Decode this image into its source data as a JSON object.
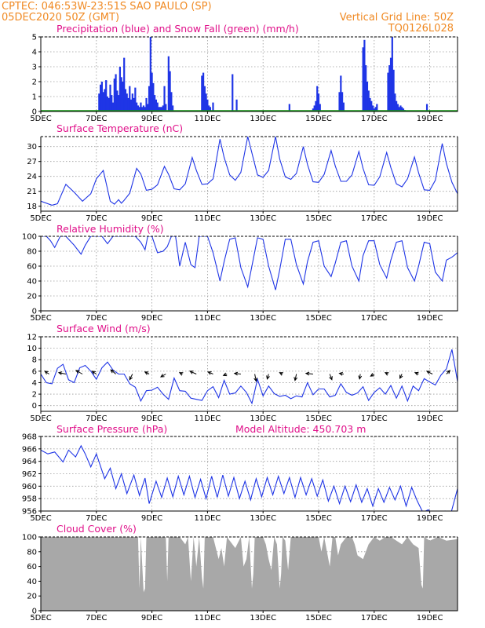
{
  "header": {
    "line1_left": "CPTEC:  046:53W-23:51S  SAO PAULO (SP)",
    "line2_left": "05DEC2020 50Z (GMT)",
    "line1_right": "Vertical Grid Line: 50Z",
    "line2_right": "TQ0126L028"
  },
  "colors": {
    "header": "#f08a24",
    "panel_title": "#e0118a",
    "series_blue": "#1f35e6",
    "snow_green": "#18a018",
    "cloud_gray": "#a8a8a8",
    "grid": "#9a9a9a"
  },
  "x_axis": {
    "start_day": 5,
    "end_day": 20,
    "tick_days": [
      5,
      7,
      9,
      11,
      13,
      15,
      17,
      19
    ],
    "tick_labels": [
      "5DEC",
      "7DEC",
      "9DEC",
      "11DEC",
      "13DEC",
      "15DEC",
      "17DEC",
      "19DEC"
    ]
  },
  "chart_data": [
    {
      "id": "precip",
      "type": "bar",
      "title": "Precipitation (blue) and Snow Fall (green) (mm/h)",
      "ylim": [
        0,
        5
      ],
      "yticks": [
        0,
        1,
        2,
        3,
        4,
        5
      ],
      "grid": true,
      "series": [
        {
          "name": "Precipitation",
          "color": "blue",
          "x": [
            7.1,
            7.15,
            7.2,
            7.25,
            7.3,
            7.35,
            7.4,
            7.45,
            7.5,
            7.55,
            7.6,
            7.65,
            7.7,
            7.75,
            7.8,
            7.85,
            7.9,
            7.95,
            8.0,
            8.05,
            8.1,
            8.15,
            8.2,
            8.25,
            8.3,
            8.35,
            8.4,
            8.45,
            8.5,
            8.55,
            8.6,
            8.65,
            8.7,
            8.75,
            8.8,
            8.85,
            8.9,
            8.95,
            9.0,
            9.05,
            9.1,
            9.15,
            9.2,
            9.25,
            9.3,
            9.35,
            9.4,
            9.45,
            9.5,
            9.6,
            9.65,
            9.7,
            9.75,
            10.8,
            10.85,
            10.9,
            10.95,
            11.0,
            11.05,
            11.1,
            11.2,
            11.9,
            12.05,
            13.95,
            14.8,
            14.85,
            14.9,
            14.95,
            15.0,
            15.05,
            15.75,
            15.8,
            15.85,
            15.9,
            16.6,
            16.65,
            16.7,
            16.75,
            16.8,
            16.85,
            16.9,
            16.95,
            17.0,
            17.05,
            17.1,
            17.5,
            17.55,
            17.6,
            17.65,
            17.7,
            17.75,
            17.8,
            17.85,
            17.9,
            17.95,
            18.0,
            18.05,
            18.1,
            18.9
          ],
          "values": [
            1.2,
            1.8,
            2.0,
            1.3,
            1.5,
            2.1,
            1.0,
            0.9,
            1.8,
            1.1,
            0.6,
            2.2,
            2.5,
            1.4,
            1.1,
            3.0,
            2.3,
            2.0,
            3.6,
            1.5,
            1.2,
            0.9,
            1.7,
            0.8,
            1.2,
            0.9,
            1.6,
            0.6,
            0.4,
            0.3,
            0.6,
            0.3,
            0.4,
            0.3,
            0.9,
            0.5,
            1.7,
            5.0,
            2.6,
            1.9,
            1.1,
            0.8,
            0.6,
            0.3,
            0.3,
            0.3,
            0.4,
            1.7,
            0.5,
            3.7,
            2.7,
            1.3,
            0.4,
            2.4,
            2.6,
            1.7,
            1.2,
            0.8,
            0.4,
            0.3,
            0.6,
            2.5,
            0.8,
            0.5,
            0.2,
            0.4,
            0.7,
            1.7,
            1.2,
            0.5,
            1.3,
            2.4,
            1.3,
            0.6,
            4.3,
            4.8,
            3.1,
            2.0,
            1.4,
            0.9,
            0.7,
            0.4,
            0.2,
            0.3,
            0.5,
            2.6,
            3.1,
            3.6,
            5.0,
            2.8,
            1.2,
            0.7,
            0.5,
            0.3,
            0.4,
            0.3,
            0.2,
            0.1,
            0.5
          ]
        },
        {
          "name": "Snow Fall",
          "color": "green",
          "values_all": 0
        }
      ]
    },
    {
      "id": "temperature",
      "type": "line",
      "title": "Surface Temperature (nC)",
      "ylim": [
        17,
        32
      ],
      "yticks": [
        18,
        21,
        24,
        27,
        30
      ],
      "grid": true,
      "x": [
        5.0,
        5.4,
        5.6,
        5.9,
        6.2,
        6.5,
        6.8,
        7.0,
        7.25,
        7.5,
        7.65,
        7.8,
        7.9,
        8.0,
        8.2,
        8.45,
        8.6,
        8.8,
        9.0,
        9.2,
        9.45,
        9.6,
        9.8,
        10.0,
        10.2,
        10.45,
        10.6,
        10.8,
        11.0,
        11.2,
        11.45,
        11.6,
        11.8,
        12.0,
        12.2,
        12.45,
        12.6,
        12.8,
        13.0,
        13.2,
        13.45,
        13.6,
        13.8,
        14.0,
        14.2,
        14.45,
        14.6,
        14.8,
        15.0,
        15.2,
        15.45,
        15.6,
        15.8,
        16.0,
        16.2,
        16.45,
        16.6,
        16.8,
        17.0,
        17.2,
        17.45,
        17.6,
        17.8,
        18.0,
        18.2,
        18.45,
        18.6,
        18.8,
        19.0,
        19.2,
        19.45,
        19.6,
        19.8,
        20.0
      ],
      "values": [
        19,
        18.2,
        18.5,
        22.4,
        20.8,
        19,
        20.5,
        23.5,
        25.2,
        19,
        18.4,
        19.3,
        18.6,
        19.2,
        20.6,
        25.6,
        24.5,
        21.2,
        21.4,
        22.3,
        26,
        24.4,
        21.5,
        21.3,
        22.5,
        27.8,
        25.2,
        22.4,
        22.5,
        23.5,
        31.5,
        27.8,
        24.3,
        23.2,
        24.8,
        32,
        28.7,
        24.3,
        23.8,
        25.2,
        32,
        27.5,
        23.9,
        23.4,
        24.6,
        30,
        26.4,
        22.9,
        22.8,
        24.4,
        29.2,
        26.1,
        23,
        23,
        24.3,
        29,
        25.6,
        22.3,
        22.2,
        23.9,
        28.8,
        25.8,
        22.5,
        21.9,
        23.5,
        27.9,
        24.7,
        21.3,
        21.2,
        23.2,
        30.6,
        26.6,
        22.8,
        20.5
      ]
    },
    {
      "id": "humidity",
      "type": "line",
      "title": "Relative Humidity (%)",
      "ylim": [
        0,
        100
      ],
      "yticks": [
        0,
        20,
        40,
        60,
        80,
        100
      ],
      "grid": true,
      "x": [
        5.0,
        5.2,
        5.35,
        5.5,
        5.7,
        5.9,
        6.2,
        6.45,
        6.6,
        6.8,
        7.0,
        7.2,
        7.4,
        7.6,
        7.8,
        8.0,
        8.2,
        8.4,
        8.6,
        8.75,
        8.85,
        9.0,
        9.2,
        9.4,
        9.55,
        9.7,
        9.85,
        10.0,
        10.2,
        10.4,
        10.55,
        10.7,
        10.85,
        11.0,
        11.2,
        11.45,
        11.6,
        11.8,
        12.0,
        12.2,
        12.45,
        12.6,
        12.8,
        13.0,
        13.2,
        13.45,
        13.6,
        13.8,
        14.0,
        14.2,
        14.45,
        14.6,
        14.8,
        15.0,
        15.2,
        15.45,
        15.6,
        15.8,
        16.0,
        16.2,
        16.45,
        16.6,
        16.8,
        17.0,
        17.2,
        17.45,
        17.6,
        17.8,
        18.0,
        18.2,
        18.45,
        18.6,
        18.8,
        19.0,
        19.2,
        19.45,
        19.6,
        19.8,
        20.0
      ],
      "values": [
        100,
        100,
        94,
        85,
        100,
        100,
        88,
        76,
        88,
        100,
        100,
        100,
        90,
        100,
        100,
        100,
        100,
        100,
        92,
        82,
        100,
        100,
        78,
        80,
        86,
        100,
        100,
        60,
        92,
        62,
        58,
        100,
        100,
        100,
        78,
        40,
        66,
        96,
        98,
        58,
        32,
        60,
        98,
        96,
        60,
        28,
        55,
        96,
        96,
        62,
        36,
        66,
        92,
        94,
        60,
        46,
        64,
        92,
        94,
        60,
        40,
        74,
        94,
        94,
        62,
        44,
        68,
        92,
        94,
        58,
        40,
        60,
        92,
        90,
        52,
        40,
        68,
        72,
        78
      ]
    },
    {
      "id": "wind",
      "type": "line",
      "title": "Surface Wind (m/s)",
      "ylim": [
        -1,
        12
      ],
      "yticks": [
        0,
        2,
        4,
        6,
        8,
        10,
        12
      ],
      "grid": true,
      "x": [
        5.0,
        5.2,
        5.4,
        5.6,
        5.8,
        6.0,
        6.2,
        6.4,
        6.6,
        6.8,
        7.0,
        7.2,
        7.4,
        7.6,
        7.8,
        8.0,
        8.2,
        8.4,
        8.6,
        8.8,
        9.0,
        9.2,
        9.4,
        9.6,
        9.8,
        10.0,
        10.2,
        10.4,
        10.6,
        10.8,
        11.0,
        11.2,
        11.4,
        11.6,
        11.8,
        12.0,
        12.2,
        12.4,
        12.6,
        12.8,
        13.0,
        13.2,
        13.4,
        13.6,
        13.8,
        14.0,
        14.2,
        14.4,
        14.6,
        14.8,
        15.0,
        15.2,
        15.4,
        15.6,
        15.8,
        16.0,
        16.2,
        16.4,
        16.6,
        16.8,
        17.0,
        17.2,
        17.4,
        17.6,
        17.8,
        18.0,
        18.2,
        18.4,
        18.6,
        18.8,
        19.0,
        19.2,
        19.4,
        19.6,
        19.8,
        20.0
      ],
      "values": [
        5.5,
        4,
        3.8,
        6.5,
        7.2,
        4.5,
        4,
        6.6,
        7,
        6,
        4.6,
        6.6,
        7.6,
        6.2,
        5.5,
        5.5,
        3.8,
        3.2,
        0.8,
        2.6,
        2.7,
        3.2,
        2,
        1.1,
        4.8,
        2.6,
        2.5,
        1.3,
        1.1,
        0.9,
        2.6,
        3.3,
        1.4,
        4.4,
        2,
        2.2,
        3.4,
        2.3,
        0.4,
        4.6,
        1.7,
        3.4,
        2.1,
        1.6,
        1.8,
        1.2,
        1.7,
        1.5,
        4,
        1.9,
        2.9,
        2.9,
        1.5,
        1.8,
        3.8,
        2.3,
        1.8,
        2.2,
        3.3,
        0.9,
        2.3,
        3.1,
        2,
        3.5,
        1.3,
        3.4,
        0.8,
        3.4,
        2.6,
        4.7,
        4.1,
        3.6,
        5.3,
        6.4,
        9.8,
        4.2
      ],
      "vectors": [
        {
          "day": 5.3,
          "u": -0.6,
          "v": 0.4
        },
        {
          "day": 5.9,
          "u": -1,
          "v": 0.2
        },
        {
          "day": 6.5,
          "u": -0.9,
          "v": 0.5
        },
        {
          "day": 7.0,
          "u": -0.6,
          "v": 0.4
        },
        {
          "day": 7.7,
          "u": -0.7,
          "v": 0.6
        },
        {
          "day": 8.3,
          "u": -0.4,
          "v": -0.8
        },
        {
          "day": 8.9,
          "u": -0.6,
          "v": 0.3
        },
        {
          "day": 9.5,
          "u": -0.7,
          "v": -0.4
        },
        {
          "day": 10.1,
          "u": -0.4,
          "v": 0.2
        },
        {
          "day": 10.6,
          "u": -0.9,
          "v": 0.4
        },
        {
          "day": 11.2,
          "u": -0.7,
          "v": 0.3
        },
        {
          "day": 11.7,
          "u": -0.5,
          "v": -0.2
        },
        {
          "day": 12.2,
          "u": -0.9,
          "v": 0.1
        },
        {
          "day": 12.7,
          "u": 0.2,
          "v": -1.0
        },
        {
          "day": 13.2,
          "u": -0.2,
          "v": -0.7
        },
        {
          "day": 13.7,
          "u": -0.4,
          "v": 0.2
        },
        {
          "day": 14.2,
          "u": -0.2,
          "v": -0.9
        },
        {
          "day": 14.8,
          "u": -1.0,
          "v": 0.1
        },
        {
          "day": 15.4,
          "u": 0.3,
          "v": -0.8
        },
        {
          "day": 15.9,
          "u": -0.6,
          "v": 0.1
        },
        {
          "day": 16.5,
          "u": -0.1,
          "v": -0.7
        },
        {
          "day": 17.0,
          "u": -0.5,
          "v": -0.3
        },
        {
          "day": 17.5,
          "u": -0.4,
          "v": 0.2
        },
        {
          "day": 18.0,
          "u": -0.3,
          "v": -0.6
        },
        {
          "day": 18.6,
          "u": -0.5,
          "v": 0.2
        },
        {
          "day": 19.1,
          "u": -0.8,
          "v": 0.4
        },
        {
          "day": 19.6,
          "u": 0.5,
          "v": 0.5
        }
      ]
    },
    {
      "id": "pressure",
      "type": "line",
      "title": "Surface Pressure (hPa)",
      "annotation": "Model Altitude: 450.703 m",
      "ylim": [
        956,
        968
      ],
      "yticks": [
        956,
        958,
        960,
        962,
        964,
        966,
        968
      ],
      "grid": true,
      "x": [
        5.0,
        5.25,
        5.5,
        5.8,
        6.0,
        6.25,
        6.45,
        6.6,
        6.8,
        7.0,
        7.3,
        7.5,
        7.7,
        7.9,
        8.1,
        8.35,
        8.55,
        8.75,
        8.9,
        9.15,
        9.35,
        9.55,
        9.75,
        9.95,
        10.15,
        10.35,
        10.55,
        10.75,
        10.95,
        11.15,
        11.35,
        11.55,
        11.75,
        11.95,
        12.15,
        12.35,
        12.55,
        12.75,
        12.95,
        13.15,
        13.35,
        13.55,
        13.75,
        13.95,
        14.15,
        14.35,
        14.55,
        14.75,
        14.95,
        15.15,
        15.35,
        15.55,
        15.75,
        15.95,
        16.15,
        16.35,
        16.55,
        16.75,
        16.95,
        17.15,
        17.35,
        17.55,
        17.75,
        17.95,
        18.15,
        18.35,
        18.55,
        18.75,
        18.95,
        19.15,
        19.35,
        19.55,
        19.75,
        20.0
      ],
      "values": [
        965.8,
        965.2,
        965.5,
        963.9,
        965.8,
        964.7,
        966.5,
        965.2,
        963.1,
        965.2,
        961.2,
        962.9,
        959.6,
        962,
        958.8,
        961.8,
        958.5,
        961.3,
        957.2,
        960.8,
        958.2,
        961.3,
        958.3,
        961.6,
        958.6,
        961.6,
        958.2,
        961.1,
        958,
        961.6,
        958.2,
        961.8,
        958.4,
        961.4,
        958,
        960.8,
        957.8,
        961.2,
        958.3,
        961.4,
        958.6,
        961.6,
        958.8,
        961.4,
        958.2,
        961.4,
        958.6,
        961.2,
        958.4,
        961,
        957.6,
        960,
        957.2,
        960,
        957.5,
        960.2,
        957.4,
        959.6,
        956.8,
        959.6,
        957.4,
        959.8,
        957.8,
        960,
        956.8,
        959.8,
        957.6,
        955.8,
        956.2,
        955.4,
        955,
        956,
        955.4,
        959.6
      ]
    },
    {
      "id": "cloud",
      "type": "area",
      "title": "Cloud Cover (%)",
      "ylim": [
        0,
        100
      ],
      "yticks": [
        0,
        20,
        40,
        60,
        80,
        100
      ],
      "grid": true,
      "x": [
        5.0,
        5.5,
        6.0,
        6.5,
        7.0,
        7.5,
        8.0,
        8.3,
        8.5,
        8.55,
        8.6,
        8.7,
        8.75,
        8.8,
        9.0,
        9.3,
        9.5,
        9.55,
        9.6,
        9.7,
        10.0,
        10.2,
        10.3,
        10.4,
        10.5,
        10.6,
        10.7,
        10.8,
        10.85,
        10.9,
        11.0,
        11.2,
        11.4,
        11.5,
        11.6,
        11.7,
        11.8,
        12.0,
        12.2,
        12.3,
        12.4,
        12.5,
        12.6,
        12.65,
        12.7,
        12.75,
        12.8,
        13.0,
        13.1,
        13.2,
        13.3,
        13.4,
        13.5,
        13.6,
        13.65,
        13.7,
        13.8,
        13.9,
        14.0,
        14.2,
        14.4,
        14.6,
        14.8,
        15.0,
        15.1,
        15.2,
        15.3,
        15.4,
        15.5,
        15.6,
        15.7,
        15.8,
        16.0,
        16.2,
        16.3,
        16.4,
        16.6,
        16.8,
        17.0,
        17.2,
        17.4,
        17.6,
        17.8,
        18.0,
        18.2,
        18.4,
        18.6,
        18.7,
        18.75,
        18.8,
        19.0,
        19.3,
        19.6,
        20.0
      ],
      "values": [
        100,
        100,
        100,
        100,
        100,
        100,
        100,
        100,
        100,
        30,
        100,
        25,
        30,
        100,
        100,
        100,
        100,
        40,
        100,
        100,
        100,
        90,
        100,
        40,
        100,
        60,
        100,
        45,
        30,
        100,
        100,
        100,
        70,
        85,
        60,
        100,
        95,
        85,
        100,
        60,
        70,
        100,
        30,
        50,
        100,
        100,
        100,
        100,
        90,
        70,
        55,
        100,
        90,
        30,
        50,
        100,
        95,
        55,
        100,
        100,
        100,
        100,
        100,
        100,
        80,
        100,
        80,
        60,
        100,
        100,
        75,
        90,
        100,
        100,
        90,
        75,
        70,
        90,
        100,
        95,
        100,
        100,
        95,
        90,
        100,
        90,
        85,
        35,
        30,
        100,
        95,
        100,
        95,
        97
      ]
    }
  ]
}
